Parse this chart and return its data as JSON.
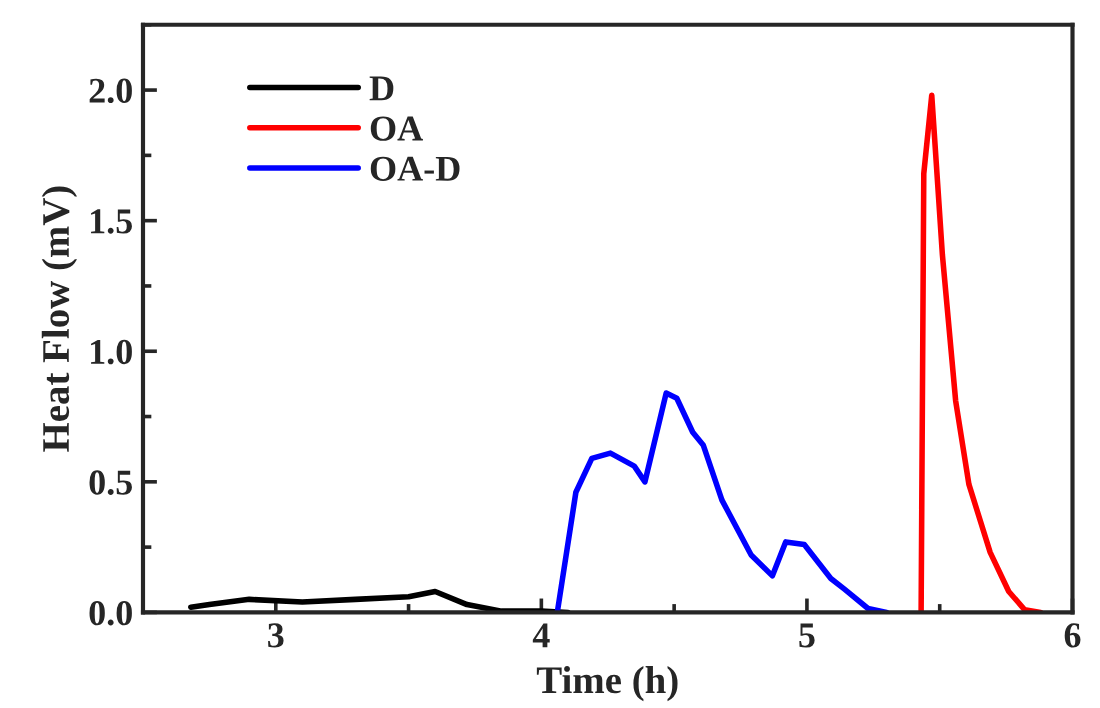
{
  "chart_data": {
    "type": "line",
    "xlabel": "Time (h)",
    "ylabel": "Heat Flow (mV)",
    "xlim": [
      2.5,
      6
    ],
    "ylim": [
      0,
      2.25
    ],
    "xticks": [
      3,
      4,
      5,
      6
    ],
    "yticks": [
      {
        "value": 0,
        "label": "0.0"
      },
      {
        "value": 0.5,
        "label": "0.5"
      },
      {
        "value": 1,
        "label": "1.0"
      },
      {
        "value": 1.5,
        "label": "1.5"
      },
      {
        "value": 2,
        "label": "2.0"
      }
    ],
    "grid": false,
    "legend": "top left",
    "marker": "none",
    "line_style": "solid",
    "series": [
      {
        "name": "D",
        "color": "#000000",
        "x": [
          2.68,
          2.75,
          2.9,
          3.1,
          3.3,
          3.5,
          3.6,
          3.72,
          3.85,
          4.0,
          4.1
        ],
        "values": [
          0.02,
          0.03,
          0.05,
          0.04,
          0.05,
          0.06,
          0.08,
          0.03,
          0.005,
          0.005,
          0
        ]
      },
      {
        "name": "OA",
        "color": "#ff0000",
        "x": [
          5.43,
          5.44,
          5.47,
          5.51,
          5.56,
          5.61,
          5.69,
          5.76,
          5.82,
          5.88
        ],
        "values": [
          0,
          1.68,
          1.98,
          1.37,
          0.81,
          0.49,
          0.23,
          0.08,
          0.01,
          0
        ]
      },
      {
        "name": "OA-D",
        "color": "#0000ff",
        "x": [
          4.06,
          4.13,
          4.19,
          4.26,
          4.35,
          4.39,
          4.47,
          4.51,
          4.57,
          4.61,
          4.68,
          4.79,
          4.87,
          4.92,
          4.99,
          5.09,
          5.14,
          5.23,
          5.3
        ],
        "values": [
          0,
          0.46,
          0.59,
          0.61,
          0.56,
          0.5,
          0.84,
          0.82,
          0.69,
          0.64,
          0.43,
          0.22,
          0.14,
          0.27,
          0.26,
          0.13,
          0.09,
          0.015,
          0
        ]
      }
    ]
  }
}
